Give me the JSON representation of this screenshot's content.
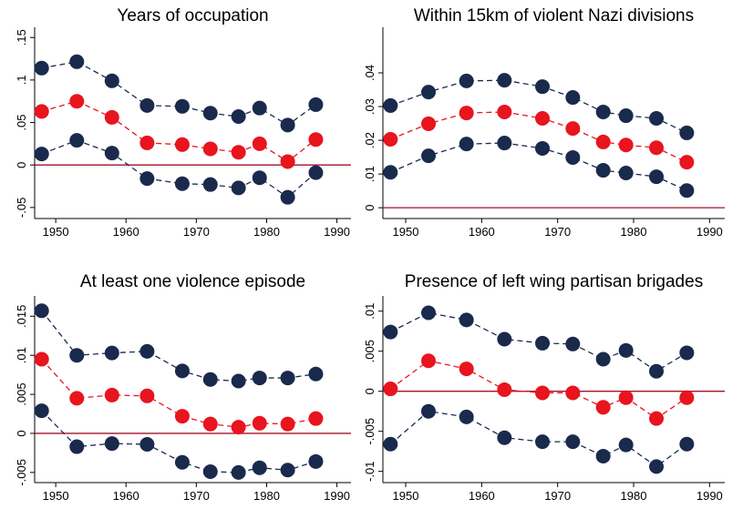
{
  "chart_data": [
    {
      "type": "line",
      "title": "Years of occupation",
      "x": [
        1948,
        1953,
        1958,
        1963,
        1968,
        1972,
        1976,
        1979,
        1983,
        1987
      ],
      "series": [
        {
          "color": "#1a2a4d",
          "values": [
            0.114,
            0.1215,
            0.099,
            0.07,
            0.069,
            0.061,
            0.057,
            0.067,
            0.047,
            0.071
          ]
        },
        {
          "color": "#e8141e",
          "values": [
            0.063,
            0.075,
            0.056,
            0.026,
            0.024,
            0.019,
            0.015,
            0.025,
            0.004,
            0.03
          ]
        },
        {
          "color": "#1a2a4d",
          "values": [
            0.013,
            0.029,
            0.014,
            -0.016,
            -0.022,
            -0.023,
            -0.027,
            -0.015,
            -0.038,
            -0.009
          ]
        }
      ],
      "xlim": [
        1947,
        1992
      ],
      "xticks": [
        1950,
        1960,
        1970,
        1980,
        1990
      ],
      "ylim": [
        -0.063,
        0.162
      ],
      "yticks": [
        {
          "value": -0.05,
          "label": "-.05"
        },
        0,
        {
          "value": 0.05,
          "label": ".05"
        },
        {
          "value": 0.1,
          "label": ".1"
        },
        {
          "value": 0.15,
          "label": ".15"
        }
      ],
      "hline": 0,
      "hline_color": "#a3102a"
    },
    {
      "type": "line",
      "title": "Within 15km of violent Nazi divisions",
      "x": [
        1948,
        1953,
        1958,
        1963,
        1968,
        1972,
        1976,
        1979,
        1983,
        1987
      ],
      "series": [
        {
          "color": "#1a2a4d",
          "values": [
            0.0303,
            0.0343,
            0.0376,
            0.0378,
            0.0359,
            0.0327,
            0.0284,
            0.0273,
            0.0265,
            0.0222
          ]
        },
        {
          "color": "#e8141e",
          "values": [
            0.0203,
            0.0249,
            0.0281,
            0.0284,
            0.0265,
            0.0235,
            0.0195,
            0.0186,
            0.0178,
            0.0135
          ]
        },
        {
          "color": "#1a2a4d",
          "values": [
            0.0105,
            0.0154,
            0.0189,
            0.0192,
            0.0176,
            0.0149,
            0.0111,
            0.0103,
            0.0092,
            0.0051
          ]
        }
      ],
      "xlim": [
        1947,
        1992
      ],
      "xticks": [
        1950,
        1960,
        1970,
        1980,
        1990
      ],
      "ylim": [
        -0.0032,
        0.0535
      ],
      "yticks": [
        0,
        {
          "value": 0.01,
          "label": ".01"
        },
        {
          "value": 0.02,
          "label": ".02"
        },
        {
          "value": 0.03,
          "label": ".03"
        },
        {
          "value": 0.04,
          "label": ".04"
        }
      ],
      "hline": 0,
      "hline_color": "#a3102a"
    },
    {
      "type": "line",
      "title": "At least one violence episode",
      "x": [
        1948,
        1953,
        1958,
        1963,
        1968,
        1972,
        1976,
        1979,
        1983,
        1987
      ],
      "series": [
        {
          "color": "#1a2a4d",
          "values": [
            0.0157,
            0.01,
            0.0103,
            0.0105,
            0.008,
            0.0069,
            0.0067,
            0.0071,
            0.0071,
            0.0076
          ]
        },
        {
          "color": "#e8141e",
          "values": [
            0.0095,
            0.0045,
            0.0049,
            0.0048,
            0.0022,
            0.0012,
            0.0008,
            0.0013,
            0.0012,
            0.0019
          ]
        },
        {
          "color": "#1a2a4d",
          "values": [
            0.0029,
            -0.0017,
            -0.0013,
            -0.0014,
            -0.0037,
            -0.0049,
            -0.005,
            -0.0044,
            -0.0047,
            -0.0036
          ]
        }
      ],
      "xlim": [
        1947,
        1992
      ],
      "xticks": [
        1950,
        1960,
        1970,
        1980,
        1990
      ],
      "ylim": [
        -0.0063,
        0.0176
      ],
      "yticks": [
        {
          "value": -0.005,
          "label": "-.005"
        },
        0,
        {
          "value": 0.005,
          "label": ".005"
        },
        {
          "value": 0.01,
          "label": ".01"
        },
        {
          "value": 0.015,
          "label": ".015"
        }
      ],
      "hline": 0,
      "hline_color": "#a3102a"
    },
    {
      "type": "line",
      "title": "Presence of left wing partisan brigades",
      "x": [
        1948,
        1953,
        1958,
        1963,
        1968,
        1972,
        1976,
        1979,
        1983,
        1987
      ],
      "series": [
        {
          "color": "#1a2a4d",
          "values": [
            0.0074,
            0.0098,
            0.0089,
            0.0065,
            0.006,
            0.0059,
            0.004,
            0.0051,
            0.0025,
            0.0048
          ]
        },
        {
          "color": "#e8141e",
          "values": [
            0.0003,
            0.0038,
            0.0028,
            0.0002,
            -0.0002,
            -0.0002,
            -0.002,
            -0.0008,
            -0.0034,
            -0.0008
          ]
        },
        {
          "color": "#1a2a4d",
          "values": [
            -0.0066,
            -0.0025,
            -0.0032,
            -0.0058,
            -0.0063,
            -0.0063,
            -0.0081,
            -0.0067,
            -0.0094,
            -0.0066
          ]
        }
      ],
      "xlim": [
        1947,
        1992
      ],
      "xticks": [
        1950,
        1960,
        1970,
        1980,
        1990
      ],
      "ylim": [
        -0.0114,
        0.0119
      ],
      "yticks": [
        {
          "value": -0.01,
          "label": "-.01"
        },
        {
          "value": -0.005,
          "label": "-.005"
        },
        0,
        {
          "value": 0.005,
          "label": ".005"
        },
        {
          "value": 0.01,
          "label": ".01"
        }
      ],
      "hline": 0,
      "hline_color": "#a3102a"
    }
  ]
}
